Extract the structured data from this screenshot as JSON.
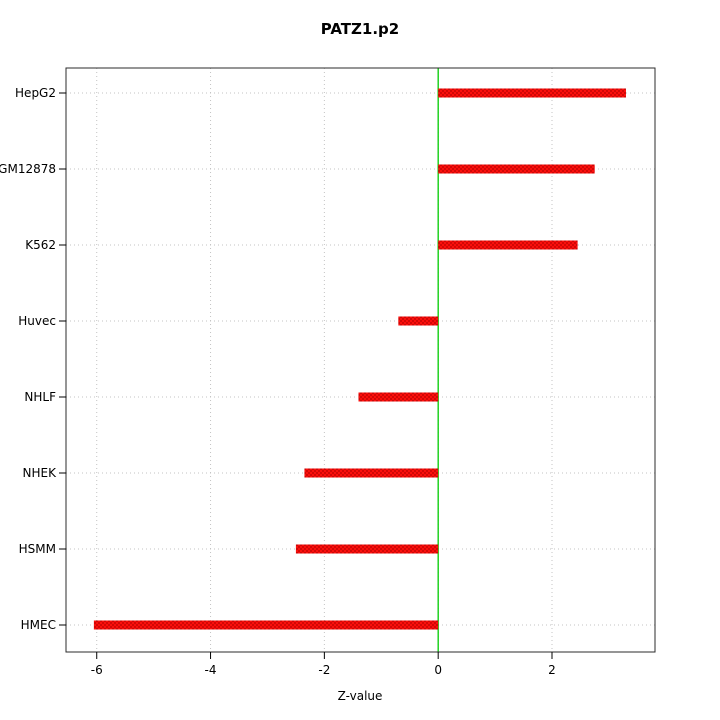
{
  "title": "PATZ1.p2",
  "chart_data": {
    "type": "bar",
    "orientation": "horizontal",
    "title": "PATZ1.p2",
    "xlabel": "Z-value",
    "ylabel": "",
    "categories": [
      "HepG2",
      "GM12878",
      "K562",
      "Huvec",
      "NHLF",
      "NHEK",
      "HSMM",
      "HMEC"
    ],
    "values": [
      3.3,
      2.75,
      2.45,
      -0.7,
      -1.4,
      -2.35,
      -2.5,
      -6.05
    ],
    "baseline": 0,
    "xticks": [
      -6,
      -4,
      -2,
      0,
      2
    ],
    "xlim": [
      -6.54,
      3.81
    ],
    "grid": true,
    "legend": "none",
    "colors": {
      "bar": "#fb0f0c",
      "bar_dot": "#b50000",
      "baseline_line": "#00cc00",
      "grid": "#c3c3c3",
      "frame": "#2b2b2b",
      "tick": "#000000",
      "text": "#000000",
      "background": "#ffffff"
    }
  }
}
